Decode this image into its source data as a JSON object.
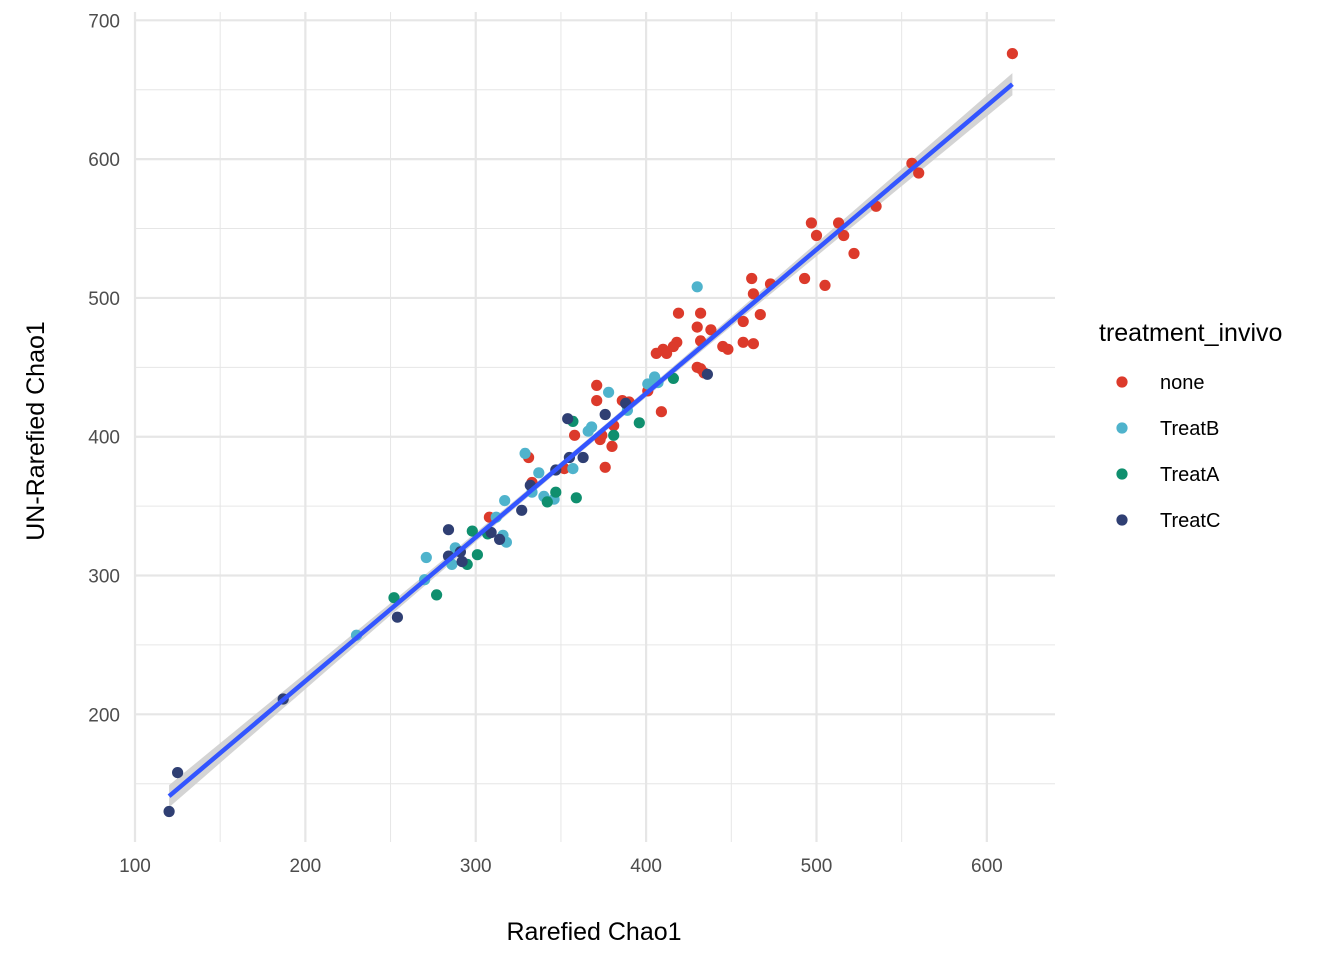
{
  "chart_data": {
    "type": "scatter",
    "title": "",
    "xlabel": "Rarefied Chao1",
    "ylabel": "UN-Rarefied Chao1",
    "xlim": [
      100,
      640
    ],
    "ylim": [
      108,
      706
    ],
    "x_ticks": [
      100,
      200,
      300,
      400,
      500,
      600
    ],
    "y_ticks": [
      200,
      300,
      400,
      500,
      600,
      700
    ],
    "x_tick_labels": [
      "100",
      "200",
      "300",
      "400",
      "500",
      "600"
    ],
    "y_tick_labels": [
      "200",
      "300",
      "400",
      "500",
      "600",
      "700"
    ],
    "grid": true,
    "legend": {
      "title": "treatment_invivo",
      "position": "right",
      "entries": [
        "none",
        "TreatB",
        "TreatA",
        "TreatC"
      ]
    },
    "colors": {
      "none": "#dc3a2b",
      "TreatB": "#4fb3cc",
      "TreatA": "#0f8f6e",
      "TreatC": "#2f3f73",
      "fit_line": "#3355ff",
      "confidence_band": "#cccccc",
      "grid": "#e6e6e6"
    },
    "fit": {
      "method": "lm",
      "x": [
        120,
        615
      ],
      "y": [
        141,
        654
      ],
      "band_halfwidth_ends": 8,
      "band_halfwidth_center": 2.5
    },
    "series": [
      {
        "name": "none",
        "points": [
          [
            615,
            676
          ],
          [
            556,
            597
          ],
          [
            560,
            590
          ],
          [
            535,
            566
          ],
          [
            513,
            554
          ],
          [
            497,
            554
          ],
          [
            516,
            545
          ],
          [
            500,
            545
          ],
          [
            522,
            532
          ],
          [
            493,
            514
          ],
          [
            462,
            514
          ],
          [
            505,
            509
          ],
          [
            473,
            510
          ],
          [
            463,
            503
          ],
          [
            419,
            489
          ],
          [
            432,
            489
          ],
          [
            467,
            488
          ],
          [
            457,
            483
          ],
          [
            430,
            479
          ],
          [
            438,
            477
          ],
          [
            418,
            468
          ],
          [
            432,
            469
          ],
          [
            416,
            465
          ],
          [
            410,
            463
          ],
          [
            406,
            460
          ],
          [
            445,
            465
          ],
          [
            448,
            463
          ],
          [
            457,
            468
          ],
          [
            463,
            467
          ],
          [
            412,
            460
          ],
          [
            430,
            450
          ],
          [
            432,
            449
          ],
          [
            434,
            446
          ],
          [
            371,
            437
          ],
          [
            401,
            433
          ],
          [
            386,
            426
          ],
          [
            371,
            426
          ],
          [
            390,
            425
          ],
          [
            409,
            418
          ],
          [
            381,
            408
          ],
          [
            374,
            401
          ],
          [
            358,
            401
          ],
          [
            373,
            398
          ],
          [
            380,
            393
          ],
          [
            376,
            378
          ],
          [
            331,
            385
          ],
          [
            352,
            377
          ],
          [
            333,
            367
          ],
          [
            308,
            342
          ]
        ]
      },
      {
        "name": "TreatB",
        "points": [
          [
            430,
            508
          ],
          [
            401,
            438
          ],
          [
            405,
            443
          ],
          [
            407,
            439
          ],
          [
            378,
            432
          ],
          [
            389,
            419
          ],
          [
            366,
            404
          ],
          [
            368,
            407
          ],
          [
            357,
            377
          ],
          [
            329,
            388
          ],
          [
            337,
            374
          ],
          [
            340,
            357
          ],
          [
            346,
            355
          ],
          [
            333,
            360
          ],
          [
            317,
            354
          ],
          [
            312,
            342
          ],
          [
            316,
            329
          ],
          [
            318,
            324
          ],
          [
            288,
            320
          ],
          [
            271,
            313
          ],
          [
            286,
            308
          ],
          [
            270,
            297
          ],
          [
            230,
            257
          ]
        ]
      },
      {
        "name": "TreatA",
        "points": [
          [
            416,
            442
          ],
          [
            396,
            410
          ],
          [
            357,
            411
          ],
          [
            381,
            401
          ],
          [
            347,
            360
          ],
          [
            359,
            356
          ],
          [
            342,
            353
          ],
          [
            298,
            332
          ],
          [
            301,
            315
          ],
          [
            307,
            330
          ],
          [
            295,
            308
          ],
          [
            252,
            284
          ],
          [
            277,
            286
          ]
        ]
      },
      {
        "name": "TreatC",
        "points": [
          [
            436,
            445
          ],
          [
            388,
            424
          ],
          [
            376,
            416
          ],
          [
            354,
            413
          ],
          [
            363,
            385
          ],
          [
            355,
            385
          ],
          [
            347,
            376
          ],
          [
            332,
            365
          ],
          [
            327,
            347
          ],
          [
            284,
            333
          ],
          [
            309,
            331
          ],
          [
            314,
            326
          ],
          [
            291,
            317
          ],
          [
            284,
            314
          ],
          [
            292,
            310
          ],
          [
            254,
            270
          ],
          [
            187,
            211
          ],
          [
            125,
            158
          ],
          [
            120,
            130
          ]
        ]
      }
    ]
  }
}
